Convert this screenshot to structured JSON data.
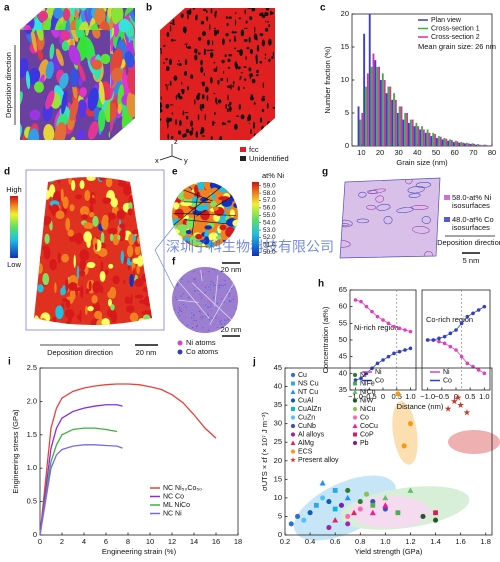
{
  "panels": {
    "a": {
      "label": "a",
      "direction": "Deposition direction"
    },
    "b": {
      "label": "b",
      "legend": [
        "fcc",
        "Unidentified"
      ],
      "axes": [
        "x",
        "y",
        "z"
      ]
    },
    "d": {
      "label": "d",
      "high": "High",
      "low": "Low",
      "direction": "Deposition direction",
      "scale": "20 nm"
    },
    "e": {
      "label": "e",
      "colorbar_title": "at% Ni",
      "colorlim": [
        49.5,
        59.5
      ],
      "colorbar_ticks": [
        {
          "value": 59,
          "label": "59.0"
        },
        {
          "value": 58,
          "label": "58.0"
        },
        {
          "value": 57,
          "label": "57.0"
        },
        {
          "value": 56,
          "label": "56.0"
        },
        {
          "value": 55,
          "label": "55.0"
        },
        {
          "value": 54,
          "label": "54.0"
        },
        {
          "value": 53,
          "label": "53.0"
        },
        {
          "value": 52,
          "label": "52.0"
        },
        {
          "value": 51,
          "label": "51.0"
        },
        {
          "value": 50,
          "label": "50.0"
        }
      ],
      "scale": "20 nm"
    },
    "f": {
      "label": "f",
      "legend": [
        "Ni atoms",
        "Co atoms"
      ],
      "scale": "20 nm"
    },
    "g": {
      "label": "g",
      "legend": [
        [
          "58.0-at% Ni",
          "isosurfaces"
        ],
        [
          "48.0-at% Co",
          "isosurfaces"
        ]
      ],
      "direction": "Deposition direction",
      "scale": "5 nm"
    }
  },
  "watermark": "深圳子科生物科技有限公司",
  "chart_data": [
    {
      "type": "histogram",
      "label": "c",
      "xlabel": "Grain size (nm)",
      "ylabel": "Number fraction (%)",
      "annotation": "Mean grain size: 26 nm",
      "bins": [
        8,
        11,
        14,
        17,
        20,
        23,
        26,
        29,
        32,
        35,
        38,
        41,
        44,
        47,
        50,
        53,
        56,
        59,
        62,
        65,
        68,
        71,
        74,
        77,
        80
      ],
      "series": [
        {
          "name": "Plan view",
          "color": "#3b3bd6",
          "values": [
            6,
            17,
            20,
            13,
            10,
            8,
            7,
            5,
            4,
            3.5,
            3,
            2.5,
            2,
            1.5,
            1.2,
            1,
            0.8,
            0.6,
            0.5,
            0.4,
            0.3,
            0.2,
            0.1,
            0.1
          ]
        },
        {
          "name": "Cross-section 1",
          "color": "#3cb043",
          "values": [
            4,
            9,
            12,
            12,
            11,
            9,
            8,
            6,
            5,
            4,
            3.5,
            3,
            2.5,
            2,
            1.5,
            1.2,
            1,
            0.8,
            0.6,
            0.5,
            0.4,
            0.3,
            0.2,
            0.1
          ]
        },
        {
          "name": "Cross-section 2",
          "color": "#d6339a",
          "values": [
            5,
            11,
            14,
            12,
            10,
            9,
            7,
            6,
            5,
            4,
            3,
            2.5,
            2,
            1.8,
            1.4,
            1.1,
            0.9,
            0.7,
            0.5,
            0.4,
            0.3,
            0.2,
            0.2,
            0.1
          ]
        }
      ],
      "xlim": [
        5,
        80
      ],
      "xticks": [
        10,
        20,
        30,
        40,
        50,
        60,
        70,
        80
      ],
      "ylim": [
        0,
        20
      ],
      "yticks": [
        0,
        5,
        10,
        15,
        20
      ]
    },
    {
      "type": "line",
      "label": "h",
      "markers": true,
      "ylabel": "Concentration (at%)",
      "xlabel": "Distance (nm)",
      "annotation": "Ni-rich region",
      "vlines": [
        0.5
      ],
      "x": [
        -1.0,
        -0.8,
        -0.6,
        -0.4,
        -0.2,
        0,
        0.2,
        0.4,
        0.6,
        0.8,
        1.0
      ],
      "series": [
        {
          "name": "Ni",
          "color": "#e040c0",
          "values": [
            62,
            61.5,
            60,
            58.5,
            57,
            56,
            55,
            54,
            53.5,
            53,
            52.5
          ]
        },
        {
          "name": "Co",
          "color": "#3040c0",
          "values": [
            38,
            38.5,
            40,
            41.5,
            43,
            44,
            45,
            46,
            46.5,
            47,
            47.5
          ]
        }
      ],
      "xlim": [
        -1.2,
        1.2
      ],
      "xticks": [
        {
          "value": -1,
          "label": "−1.0"
        },
        {
          "value": -0.5,
          "label": "−0.5"
        },
        0,
        0.5,
        {
          "value": 1,
          "label": "1.0"
        }
      ],
      "ylim": [
        35,
        65
      ],
      "yticks": [
        35,
        40,
        45,
        50,
        55,
        60,
        65
      ]
    },
    {
      "type": "line",
      "label": "",
      "markers": true,
      "annotation": "Co-rich region",
      "vlines": [
        0.2
      ],
      "x": [
        -1.0,
        -0.8,
        -0.6,
        -0.4,
        -0.2,
        0,
        0.2,
        0.4,
        0.6,
        0.8,
        1.0
      ],
      "series": [
        {
          "name": "Ni",
          "color": "#e040c0",
          "values": [
            50,
            50,
            49.5,
            49,
            48,
            47,
            45,
            43,
            42,
            41,
            40
          ]
        },
        {
          "name": "Co",
          "color": "#3040c0",
          "values": [
            50,
            50,
            50.5,
            51,
            52,
            53,
            55,
            57,
            58,
            59,
            60
          ]
        }
      ],
      "xlim": [
        -1.2,
        1.2
      ],
      "xticks": [
        {
          "value": -1,
          "label": "−1.0"
        },
        {
          "value": -0.5,
          "label": "−0.5"
        },
        0,
        0.5,
        {
          "value": 1,
          "label": "1.0"
        }
      ],
      "ylim": [
        35,
        65
      ]
    },
    {
      "type": "line",
      "label": "i",
      "markers": false,
      "xlabel": "Engineering strain (%)",
      "ylabel": "Engineering stress (GPa)",
      "series": [
        {
          "name": "NC Ni₅₀Co₅₀",
          "color": "#e8413a",
          "x": [
            0,
            1,
            1.5,
            2,
            3,
            4,
            5,
            6,
            7,
            8,
            9,
            10,
            11,
            12,
            13,
            14,
            15,
            16
          ],
          "values": [
            0,
            1.6,
            1.9,
            2.05,
            2.15,
            2.2,
            2.23,
            2.25,
            2.26,
            2.26,
            2.25,
            2.22,
            2.18,
            2.1,
            1.98,
            1.8,
            1.6,
            1.45
          ]
        },
        {
          "name": "NC Co",
          "color": "#8a2be2",
          "x": [
            0,
            1,
            1.5,
            2,
            3,
            4,
            5,
            6,
            7,
            7.5
          ],
          "values": [
            0,
            1.3,
            1.6,
            1.75,
            1.85,
            1.9,
            1.93,
            1.95,
            1.95,
            1.93
          ]
        },
        {
          "name": "ML NiCo",
          "color": "#3cb043",
          "x": [
            0,
            1,
            1.5,
            2,
            3,
            4,
            5,
            6,
            7
          ],
          "values": [
            0,
            1.1,
            1.35,
            1.5,
            1.58,
            1.6,
            1.6,
            1.58,
            1.55
          ]
        },
        {
          "name": "NC Ni",
          "color": "#7b68ee",
          "x": [
            0,
            1,
            1.5,
            2,
            3,
            4,
            5,
            6,
            7,
            7.5
          ],
          "values": [
            0,
            1.0,
            1.2,
            1.28,
            1.33,
            1.35,
            1.35,
            1.34,
            1.33,
            1.3
          ]
        }
      ],
      "xlim": [
        0,
        18
      ],
      "xticks": [
        0,
        2,
        4,
        6,
        8,
        10,
        12,
        14,
        16,
        18
      ],
      "ylim": [
        0,
        2.5
      ],
      "yticks": [
        0,
        0.5,
        {
          "value": 1,
          "label": "1.0"
        },
        1.5,
        {
          "value": 2,
          "label": "2.0"
        },
        2.5
      ]
    },
    {
      "type": "scatter",
      "label": "j",
      "xlabel": "Yield strength (GPa)",
      "ylabel": "σUTS × εf (× 10⁷ J m⁻³)",
      "series": [
        {
          "name": "Cu",
          "color": "#2f6fd6",
          "marker": "circle",
          "x": [
            0.25,
            0.3
          ],
          "values": [
            3,
            5
          ]
        },
        {
          "name": "NS Cu",
          "color": "#2ea8e0",
          "marker": "square",
          "x": [
            0.45,
            0.6
          ],
          "values": [
            8,
            12
          ]
        },
        {
          "name": "NT Cu",
          "color": "#1e90ff",
          "marker": "triangle",
          "x": [
            0.5,
            0.7
          ],
          "values": [
            14,
            10
          ]
        },
        {
          "name": "CuAl",
          "color": "#0a5fb4",
          "marker": "circle",
          "x": [
            0.4,
            0.55
          ],
          "values": [
            6,
            9
          ]
        },
        {
          "name": "CuAlZn",
          "color": "#00bcd4",
          "marker": "square",
          "x": [
            0.6
          ],
          "values": [
            7
          ]
        },
        {
          "name": "CuZn",
          "color": "#4fc3f7",
          "marker": "circle",
          "x": [
            0.35,
            0.5
          ],
          "values": [
            4,
            10
          ]
        },
        {
          "name": "CuNb",
          "color": "#3f51b5",
          "marker": "circle",
          "x": [
            0.9,
            1.0
          ],
          "values": [
            9,
            7
          ]
        },
        {
          "name": "Al alloys",
          "color": "#9c27b0",
          "marker": "circle",
          "x": [
            0.55,
            0.7
          ],
          "values": [
            2,
            3
          ]
        },
        {
          "name": "AlMg",
          "color": "#e91e63",
          "marker": "triangle",
          "x": [
            0.6,
            0.75
          ],
          "values": [
            4,
            6
          ]
        },
        {
          "name": "ECS",
          "color": "#f39c12",
          "marker": "circle",
          "x": [
            1.1,
            1.2,
            1.15
          ],
          "values": [
            38,
            30,
            24
          ]
        },
        {
          "name": "Present alloy",
          "color": "#c0392b",
          "marker": "star",
          "x": [
            1.5,
            1.55,
            1.6,
            1.65,
            1.58
          ],
          "values": [
            34,
            36,
            35,
            33,
            37
          ]
        },
        {
          "name": "Ni",
          "color": "#2e7d32",
          "marker": "circle",
          "x": [
            0.7,
            0.8
          ],
          "values": [
            12,
            9
          ]
        },
        {
          "name": "NiFe",
          "color": "#4caf50",
          "marker": "square",
          "x": [
            0.9,
            1.1
          ],
          "values": [
            8,
            6
          ]
        },
        {
          "name": "NiCo",
          "color": "#66bb6a",
          "marker": "triangle",
          "x": [
            1.0,
            1.2
          ],
          "values": [
            10,
            12
          ]
        },
        {
          "name": "NiW",
          "color": "#1b5e20",
          "marker": "circle",
          "x": [
            1.3,
            1.4
          ],
          "values": [
            5,
            4
          ]
        },
        {
          "name": "NiCu",
          "color": "#8bc34a",
          "marker": "circle",
          "x": [
            0.85
          ],
          "values": [
            11
          ]
        },
        {
          "name": "Co",
          "color": "#ff69b4",
          "marker": "circle",
          "x": [
            0.7,
            0.8
          ],
          "values": [
            5,
            7
          ]
        },
        {
          "name": "CoCu",
          "color": "#ff1493",
          "marker": "triangle",
          "x": [
            0.9,
            1.0
          ],
          "values": [
            6,
            8
          ]
        },
        {
          "name": "CoP",
          "color": "#d81b60",
          "marker": "square",
          "x": [
            1.4
          ],
          "values": [
            6
          ]
        },
        {
          "name": "Pb",
          "color": "#7b1fa2",
          "marker": "circle",
          "x": [
            0.65
          ],
          "values": [
            8
          ]
        }
      ],
      "xlim": [
        0.2,
        1.85
      ],
      "xticks": [
        0.2,
        0.4,
        0.6,
        0.8,
        {
          "value": 1,
          "label": "1.0"
        },
        1.2,
        1.4,
        1.6,
        1.8
      ],
      "ylim": [
        0,
        45
      ],
      "yticks": [
        0,
        5,
        10,
        15,
        20,
        25,
        30,
        35,
        40,
        45
      ]
    }
  ]
}
